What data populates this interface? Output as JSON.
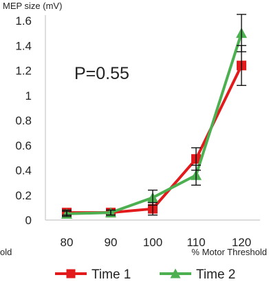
{
  "chart_data": {
    "type": "line",
    "ylabel": "MEP size (mV)",
    "xlabel": "% Motor Threshold",
    "left_cut_label": "old",
    "annotation": "P=0.55",
    "categories": [
      "80",
      "90",
      "100",
      "110",
      "120"
    ],
    "ylim": [
      0,
      1.6
    ],
    "yticks": [
      "0",
      "0.2",
      "0.4",
      "0.6",
      "0.8",
      "1",
      "1.2",
      "1.4",
      "1.6"
    ],
    "grid": false,
    "legend_position": "bottom",
    "series": [
      {
        "name": "Time 1",
        "color": "#e31a1c",
        "marker": "square",
        "values": [
          0.06,
          0.06,
          0.09,
          0.49,
          1.24
        ],
        "errors": [
          0.02,
          0.02,
          0.05,
          0.09,
          0.16
        ]
      },
      {
        "name": "Time 2",
        "color": "#4caf50",
        "marker": "triangle",
        "values": [
          0.05,
          0.06,
          0.18,
          0.36,
          1.5
        ],
        "errors": [
          0.02,
          0.02,
          0.06,
          0.08,
          0.15
        ]
      }
    ]
  }
}
